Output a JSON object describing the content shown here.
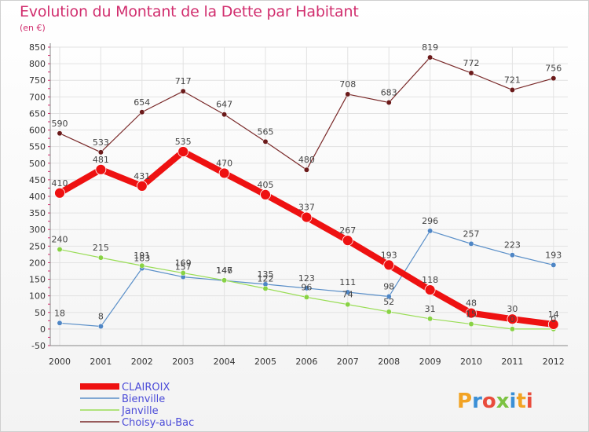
{
  "chart_data": {
    "type": "line",
    "title": "Evolution du Montant de la Dette par Habitant",
    "subtitle": "(en €)",
    "xlabel": "",
    "ylabel": "",
    "ylim": [
      -50,
      850
    ],
    "ytick_step": 50,
    "categories": [
      "2000",
      "2001",
      "2002",
      "2003",
      "2004",
      "2005",
      "2006",
      "2007",
      "2008",
      "2009",
      "2010",
      "2011",
      "2012"
    ],
    "series": [
      {
        "name": "Choisy-au-Bac",
        "color": "#7a2a2a",
        "values": [
          590,
          533,
          654,
          717,
          647,
          565,
          480,
          708,
          683,
          819,
          772,
          721,
          756
        ]
      },
      {
        "name": "Bienville",
        "color": "#5a8fc8",
        "values": [
          18,
          8,
          183,
          157,
          146,
          135,
          123,
          111,
          98,
          296,
          257,
          223,
          193
        ]
      },
      {
        "name": "Janville",
        "color": "#99dd55",
        "values": [
          240,
          215,
          191,
          169,
          147,
          122,
          96,
          74,
          52,
          31,
          15,
          0,
          0
        ]
      },
      {
        "name": "CLAIROIX",
        "color": "#ee1111",
        "values": [
          410,
          481,
          431,
          535,
          470,
          405,
          337,
          267,
          193,
          118,
          48,
          30,
          14
        ]
      }
    ],
    "data_labels": {
      "Choisy-au-Bac": [
        "590",
        "533",
        "654",
        "717",
        "647",
        "565",
        "480",
        "708",
        "683",
        "819",
        "772",
        "721",
        "756"
      ],
      "Bienville": [
        "18",
        "8",
        "183",
        "157",
        "146",
        "135",
        "123",
        "111",
        "98",
        "296",
        "257",
        "223",
        "193"
      ],
      "Janville": [
        "240",
        "215",
        "191",
        "169",
        "147",
        "122",
        "96",
        "74",
        "52",
        "31",
        "15",
        "0",
        "0"
      ],
      "CLAIROIX": [
        "410",
        "481",
        "431",
        "535",
        "470",
        "405",
        "337",
        "267",
        "193",
        "118",
        "48",
        "30",
        "14"
      ]
    },
    "legend": [
      "CLAIROIX",
      "Bienville",
      "Janville",
      "Choisy-au-Bac"
    ],
    "legend_position": "bottom-left"
  },
  "branding": {
    "logo_text": "Proxiti"
  }
}
